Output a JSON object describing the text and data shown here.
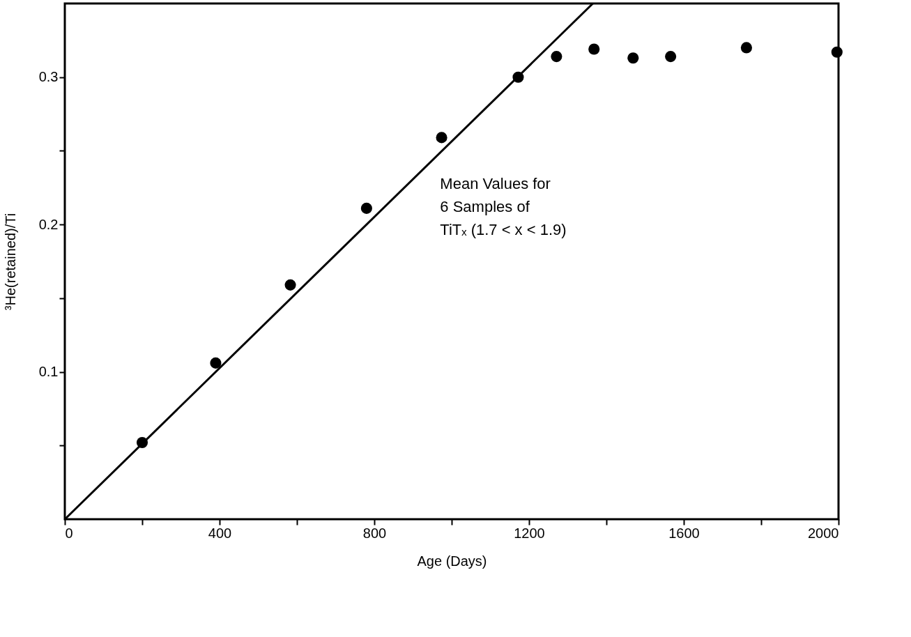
{
  "chart_data": {
    "type": "scatter",
    "xlabel": "Age (Days)",
    "ylabel": "³He(retained)/Ti",
    "annotations": [
      "Mean Values for",
      "6 Samples of",
      "TiTₓ (1.7 < x < 1.9)"
    ],
    "xlim": [
      0,
      2000
    ],
    "ylim": [
      0,
      0.35
    ],
    "xticks": [
      0,
      {
        "value": 200,
        "label": null
      },
      400,
      {
        "value": 600,
        "label": null
      },
      800,
      {
        "value": 1000,
        "label": null
      },
      1200,
      {
        "value": 1400,
        "label": null
      },
      1600,
      {
        "value": 1800,
        "label": null
      },
      2000
    ],
    "yticks": [
      {
        "value": 0.05,
        "label": null
      },
      0.1,
      {
        "value": 0.15,
        "label": null
      },
      0.2,
      {
        "value": 0.25,
        "label": null
      },
      0.3
    ],
    "grid": false,
    "series": [
      {
        "marker": "circle",
        "color": "#000000",
        "x": [
          200,
          390,
          583,
          780,
          974,
          1172,
          1271,
          1368,
          1469,
          1566,
          1762,
          1996
        ],
        "values": [
          0.052,
          0.106,
          0.159,
          0.211,
          0.259,
          0.3,
          0.314,
          0.319,
          0.313,
          0.314,
          0.32,
          0.317
        ]
      },
      {
        "type": "line",
        "marker": "none",
        "color": "#000000",
        "line_style": "solid",
        "x": [
          0,
          1365
        ],
        "values": [
          0,
          0.35
        ]
      }
    ]
  }
}
